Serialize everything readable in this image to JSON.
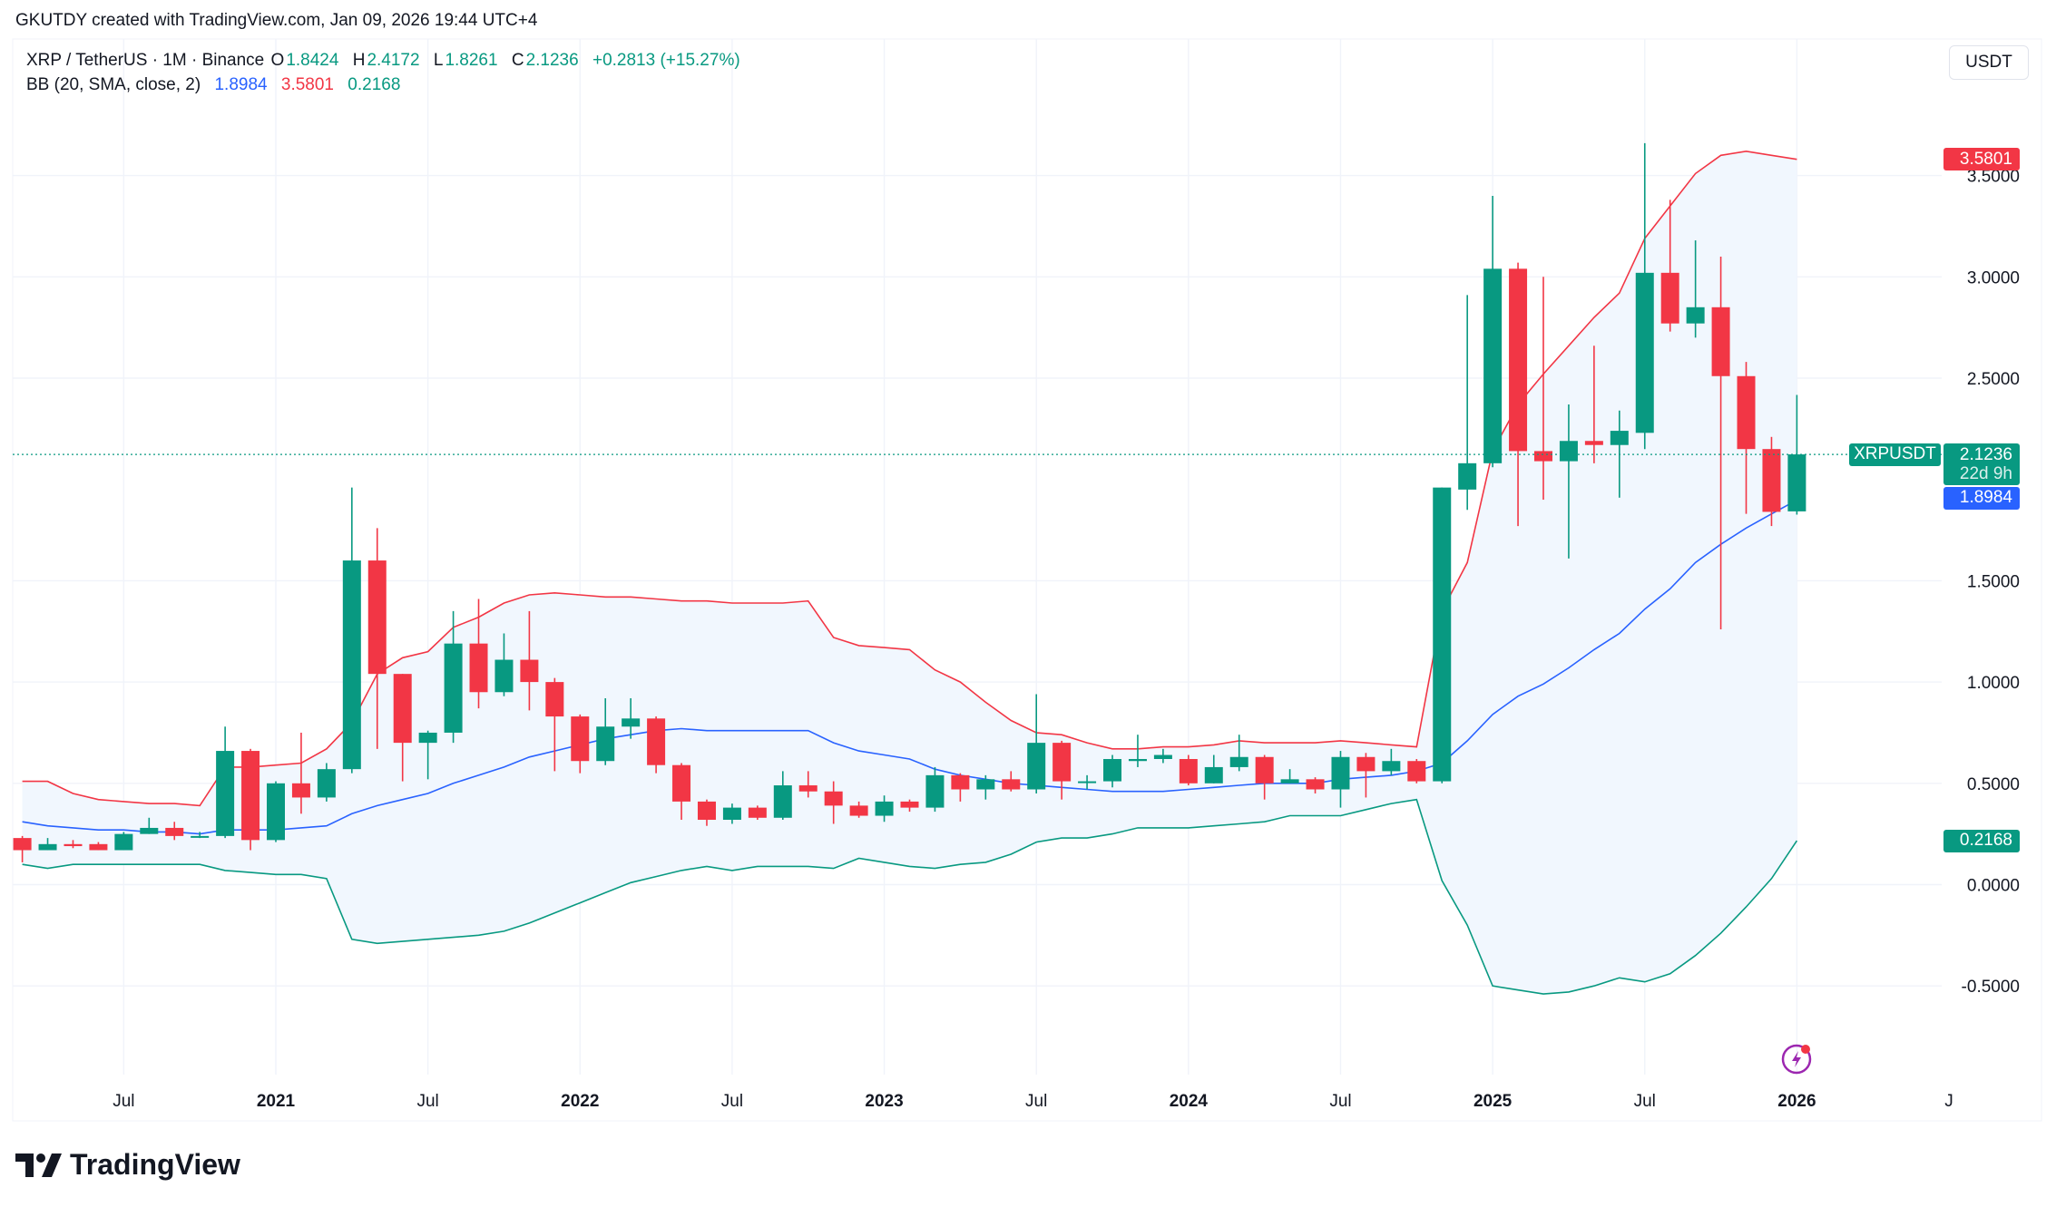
{
  "header": {
    "credit": "GKUTDY created with TradingView.com, Jan 09, 2026 19:44 UTC+4"
  },
  "legend": {
    "symbol": "XRP / TetherUS · 1M · Binance",
    "o_label": "O",
    "open": "1.8424",
    "h_label": "H",
    "high": "2.4172",
    "l_label": "L",
    "low": "1.8261",
    "c_label": "C",
    "close": "2.1236",
    "change": "+0.2813 (+15.27%)",
    "indicator": "BB (20, SMA, close, 2)",
    "bb_basis": "1.8984",
    "bb_upper": "3.5801",
    "bb_lower": "0.2168"
  },
  "currency_button": "USDT",
  "tags": {
    "upper": "3.5801",
    "symbol": "XRPUSDT",
    "last": "2.1236",
    "countdown": "22d 9h",
    "basis": "1.8984",
    "lower": "0.2168"
  },
  "logo_text": "TradingView",
  "colors": {
    "up": "#089981",
    "down": "#F23645",
    "basis": "#2962FF",
    "upper": "#F23645",
    "lower": "#089981",
    "band_fill": "#f1f7fe"
  },
  "chart_data": {
    "type": "candlestick",
    "interval": "1M",
    "start_month": "2020-03",
    "ohlc": [
      [
        0.23,
        0.24,
        0.11,
        0.17
      ],
      [
        0.17,
        0.23,
        0.17,
        0.2
      ],
      [
        0.2,
        0.22,
        0.18,
        0.19
      ],
      [
        0.2,
        0.21,
        0.17,
        0.17
      ],
      [
        0.17,
        0.26,
        0.17,
        0.25
      ],
      [
        0.25,
        0.33,
        0.25,
        0.28
      ],
      [
        0.28,
        0.31,
        0.22,
        0.24
      ],
      [
        0.24,
        0.26,
        0.23,
        0.24
      ],
      [
        0.24,
        0.78,
        0.23,
        0.66
      ],
      [
        0.66,
        0.67,
        0.17,
        0.22
      ],
      [
        0.22,
        0.51,
        0.21,
        0.5
      ],
      [
        0.5,
        0.75,
        0.35,
        0.43
      ],
      [
        0.43,
        0.6,
        0.41,
        0.57
      ],
      [
        0.57,
        1.96,
        0.55,
        1.6
      ],
      [
        1.6,
        1.76,
        0.67,
        1.04
      ],
      [
        1.04,
        1.04,
        0.51,
        0.7
      ],
      [
        0.7,
        0.76,
        0.52,
        0.75
      ],
      [
        0.75,
        1.35,
        0.7,
        1.19
      ],
      [
        1.19,
        1.41,
        0.87,
        0.95
      ],
      [
        0.95,
        1.24,
        0.93,
        1.11
      ],
      [
        1.11,
        1.35,
        0.86,
        1.0
      ],
      [
        1.0,
        1.02,
        0.56,
        0.83
      ],
      [
        0.83,
        0.84,
        0.55,
        0.61
      ],
      [
        0.61,
        0.92,
        0.59,
        0.78
      ],
      [
        0.78,
        0.92,
        0.72,
        0.82
      ],
      [
        0.82,
        0.83,
        0.55,
        0.59
      ],
      [
        0.59,
        0.6,
        0.32,
        0.41
      ],
      [
        0.41,
        0.42,
        0.29,
        0.32
      ],
      [
        0.32,
        0.4,
        0.3,
        0.38
      ],
      [
        0.38,
        0.39,
        0.32,
        0.33
      ],
      [
        0.33,
        0.56,
        0.32,
        0.49
      ],
      [
        0.49,
        0.56,
        0.43,
        0.46
      ],
      [
        0.46,
        0.51,
        0.3,
        0.39
      ],
      [
        0.39,
        0.41,
        0.33,
        0.34
      ],
      [
        0.34,
        0.44,
        0.31,
        0.41
      ],
      [
        0.41,
        0.42,
        0.36,
        0.38
      ],
      [
        0.38,
        0.58,
        0.36,
        0.54
      ],
      [
        0.54,
        0.55,
        0.41,
        0.47
      ],
      [
        0.47,
        0.54,
        0.42,
        0.52
      ],
      [
        0.52,
        0.56,
        0.46,
        0.47
      ],
      [
        0.47,
        0.94,
        0.45,
        0.7
      ],
      [
        0.7,
        0.71,
        0.42,
        0.51
      ],
      [
        0.51,
        0.54,
        0.47,
        0.51
      ],
      [
        0.51,
        0.64,
        0.48,
        0.62
      ],
      [
        0.61,
        0.74,
        0.58,
        0.62
      ],
      [
        0.62,
        0.67,
        0.6,
        0.64
      ],
      [
        0.62,
        0.64,
        0.49,
        0.5
      ],
      [
        0.5,
        0.64,
        0.5,
        0.58
      ],
      [
        0.58,
        0.74,
        0.56,
        0.63
      ],
      [
        0.63,
        0.64,
        0.42,
        0.5
      ],
      [
        0.5,
        0.57,
        0.5,
        0.52
      ],
      [
        0.52,
        0.53,
        0.45,
        0.47
      ],
      [
        0.47,
        0.66,
        0.38,
        0.63
      ],
      [
        0.63,
        0.65,
        0.43,
        0.56
      ],
      [
        0.56,
        0.67,
        0.54,
        0.61
      ],
      [
        0.61,
        0.62,
        0.5,
        0.51
      ],
      [
        0.51,
        1.96,
        0.5,
        1.96
      ],
      [
        1.95,
        2.91,
        1.85,
        2.08
      ],
      [
        2.08,
        3.4,
        2.06,
        3.04
      ],
      [
        3.04,
        3.07,
        1.77,
        2.14
      ],
      [
        2.14,
        3.0,
        1.9,
        2.09
      ],
      [
        2.09,
        2.37,
        1.61,
        2.19
      ],
      [
        2.19,
        2.66,
        2.08,
        2.17
      ],
      [
        2.17,
        2.34,
        1.91,
        2.24
      ],
      [
        2.23,
        3.66,
        2.15,
        3.02
      ],
      [
        3.02,
        3.38,
        2.73,
        2.77
      ],
      [
        2.77,
        3.18,
        2.7,
        2.85
      ],
      [
        2.85,
        3.1,
        1.26,
        2.51
      ],
      [
        2.51,
        2.58,
        1.83,
        2.15
      ],
      [
        2.15,
        2.21,
        1.77,
        1.84
      ],
      [
        1.8424,
        2.4172,
        1.8261,
        2.1236
      ]
    ],
    "bb_upper": [
      0.51,
      0.51,
      0.45,
      0.42,
      0.41,
      0.4,
      0.4,
      0.39,
      0.58,
      0.58,
      0.59,
      0.6,
      0.67,
      0.8,
      1.04,
      1.12,
      1.15,
      1.27,
      1.32,
      1.39,
      1.43,
      1.44,
      1.43,
      1.42,
      1.42,
      1.41,
      1.4,
      1.4,
      1.39,
      1.39,
      1.39,
      1.4,
      1.22,
      1.18,
      1.17,
      1.16,
      1.06,
      1.0,
      0.9,
      0.81,
      0.75,
      0.74,
      0.7,
      0.67,
      0.67,
      0.68,
      0.68,
      0.69,
      0.71,
      0.7,
      0.7,
      0.7,
      0.71,
      0.7,
      0.69,
      0.68,
      1.35,
      1.59,
      2.14,
      2.37,
      2.52,
      2.66,
      2.8,
      2.92,
      3.19,
      3.35,
      3.51,
      3.6,
      3.62,
      3.6,
      3.5801
    ],
    "bb_basis": [
      0.31,
      0.29,
      0.28,
      0.27,
      0.27,
      0.26,
      0.26,
      0.25,
      0.27,
      0.27,
      0.27,
      0.28,
      0.29,
      0.35,
      0.39,
      0.42,
      0.45,
      0.5,
      0.54,
      0.58,
      0.63,
      0.66,
      0.69,
      0.72,
      0.74,
      0.76,
      0.77,
      0.76,
      0.76,
      0.76,
      0.76,
      0.76,
      0.7,
      0.66,
      0.64,
      0.62,
      0.57,
      0.54,
      0.52,
      0.5,
      0.49,
      0.48,
      0.47,
      0.46,
      0.46,
      0.46,
      0.47,
      0.48,
      0.49,
      0.5,
      0.5,
      0.5,
      0.52,
      0.53,
      0.54,
      0.56,
      0.6,
      0.71,
      0.84,
      0.93,
      0.99,
      1.07,
      1.16,
      1.24,
      1.36,
      1.46,
      1.59,
      1.68,
      1.76,
      1.83,
      1.8984
    ],
    "bb_lower": [
      0.1,
      0.08,
      0.1,
      0.1,
      0.1,
      0.1,
      0.1,
      0.1,
      0.07,
      0.06,
      0.05,
      0.05,
      0.03,
      -0.27,
      -0.29,
      -0.28,
      -0.27,
      -0.26,
      -0.25,
      -0.23,
      -0.19,
      -0.14,
      -0.09,
      -0.04,
      0.01,
      0.04,
      0.07,
      0.09,
      0.07,
      0.09,
      0.09,
      0.09,
      0.08,
      0.13,
      0.11,
      0.09,
      0.08,
      0.1,
      0.11,
      0.15,
      0.21,
      0.23,
      0.23,
      0.25,
      0.28,
      0.28,
      0.28,
      0.29,
      0.3,
      0.31,
      0.34,
      0.34,
      0.34,
      0.37,
      0.4,
      0.42,
      0.02,
      -0.2,
      -0.5,
      -0.52,
      -0.54,
      -0.53,
      -0.5,
      -0.46,
      -0.48,
      -0.44,
      -0.35,
      -0.24,
      -0.11,
      0.03,
      0.2168
    ],
    "last_price": 2.1236,
    "y_ticks": [
      {
        "value": 3.5,
        "label": "3.5000"
      },
      {
        "value": 3.0,
        "label": "3.0000"
      },
      {
        "value": 2.5,
        "label": "2.5000"
      },
      {
        "value": 1.5,
        "label": "1.5000"
      },
      {
        "value": 1.0,
        "label": "1.0000"
      },
      {
        "value": 0.5,
        "label": "0.5000"
      },
      {
        "value": 0.0,
        "label": "0.0000"
      },
      {
        "value": -0.5,
        "label": "-0.5000"
      }
    ],
    "x_ticks": [
      {
        "date": "2020-07",
        "label": "Jul",
        "major": false
      },
      {
        "date": "2021-01",
        "label": "2021",
        "major": true
      },
      {
        "date": "2021-07",
        "label": "Jul",
        "major": false
      },
      {
        "date": "2022-01",
        "label": "2022",
        "major": true
      },
      {
        "date": "2022-07",
        "label": "Jul",
        "major": false
      },
      {
        "date": "2023-01",
        "label": "2023",
        "major": true
      },
      {
        "date": "2023-07",
        "label": "Jul",
        "major": false
      },
      {
        "date": "2024-01",
        "label": "2024",
        "major": true
      },
      {
        "date": "2024-07",
        "label": "Jul",
        "major": false
      },
      {
        "date": "2025-01",
        "label": "2025",
        "major": true
      },
      {
        "date": "2025-07",
        "label": "Jul",
        "major": false
      },
      {
        "date": "2026-01",
        "label": "2026",
        "major": true
      },
      {
        "date": "2026-07",
        "label": "J",
        "major": false
      }
    ],
    "y_range": [
      -0.9,
      3.9
    ],
    "grid": true
  }
}
